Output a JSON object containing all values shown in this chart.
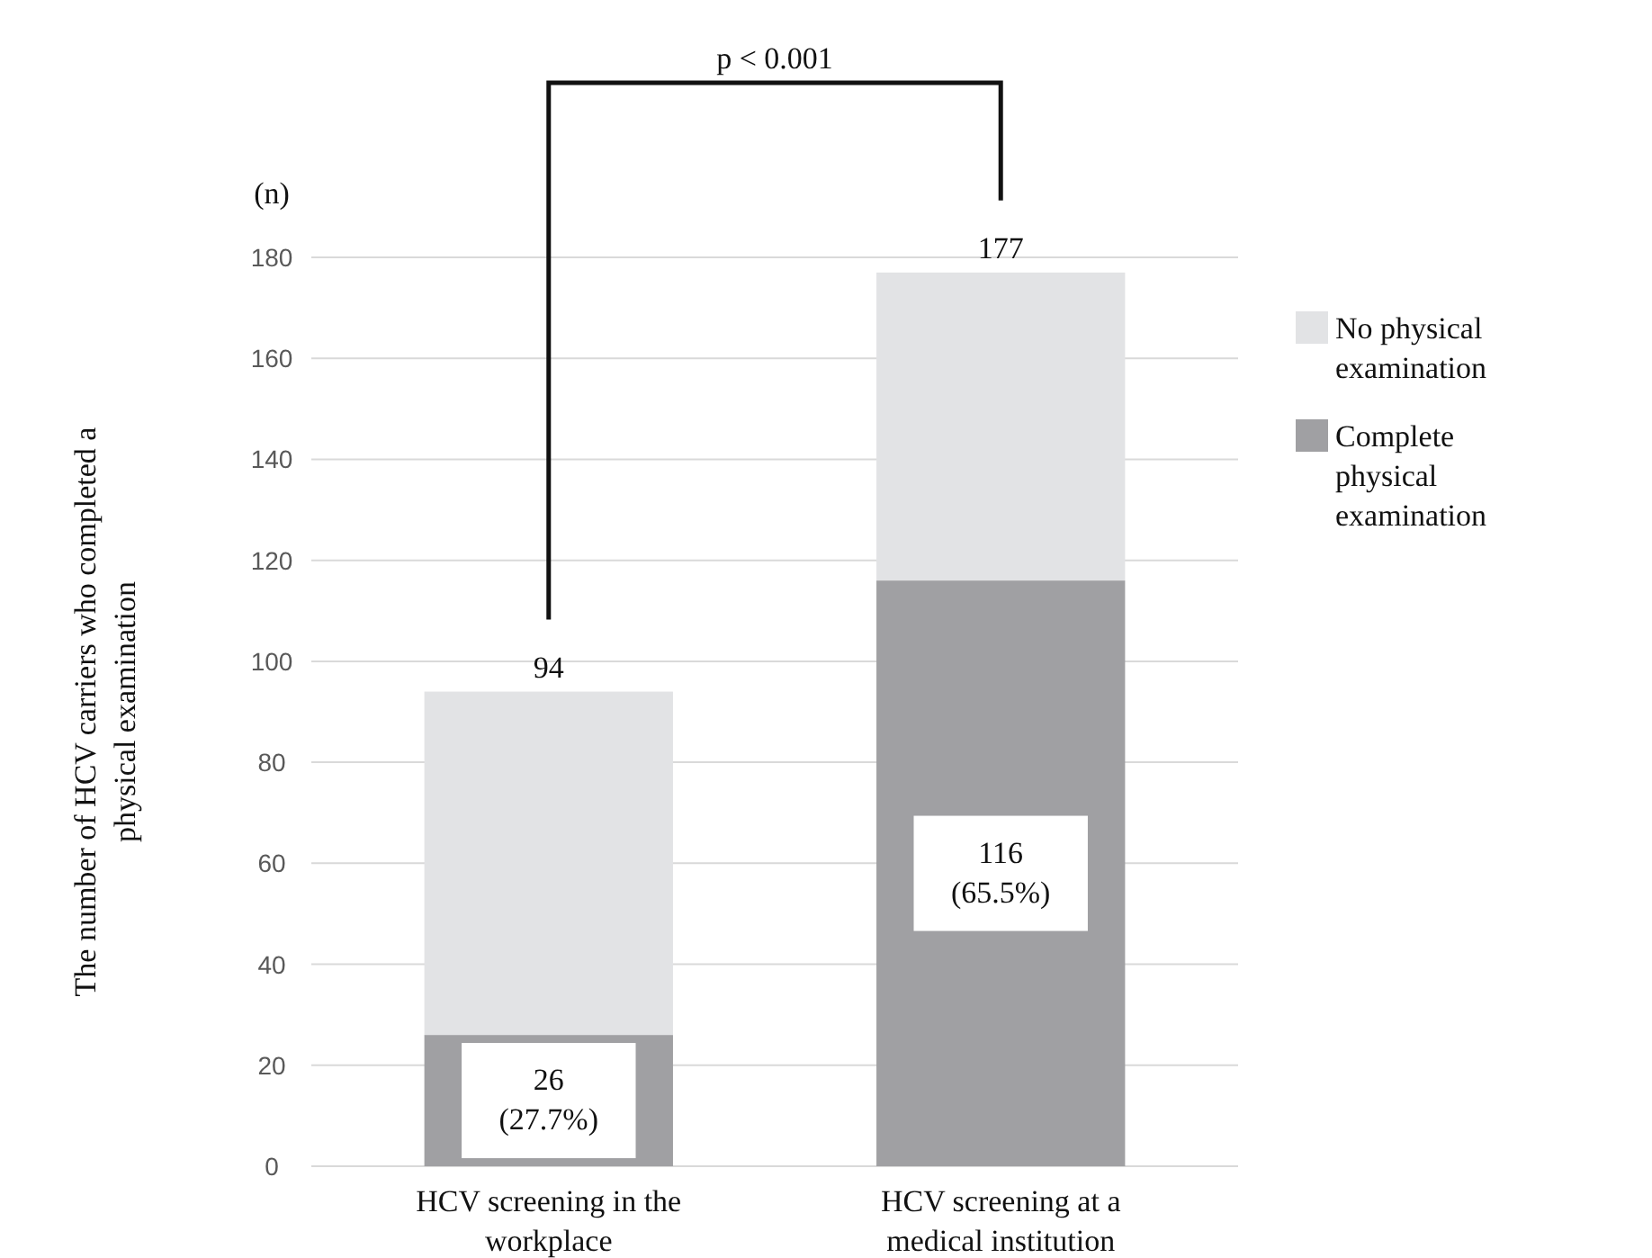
{
  "chart_data": {
    "type": "bar",
    "stacked": true,
    "ylabel": "The number of HCV carriers who completed a physical examination",
    "categories": [
      "HCV screening in the workplace",
      "HCV screening at a medical institution"
    ],
    "series": [
      {
        "name": "Complete physical examination",
        "color": "#a0a0a3",
        "values": [
          26,
          116
        ],
        "value_labels": [
          "26\n(27.7%)",
          "116\n(65.5%)"
        ]
      },
      {
        "name": "No physical examination",
        "color": "#e2e3e5",
        "values": [
          68,
          61
        ]
      }
    ],
    "totals": [
      "94",
      "177"
    ],
    "ylim": [
      0,
      180
    ],
    "yticks": [
      0,
      20,
      40,
      60,
      80,
      100,
      120,
      140,
      160,
      180
    ],
    "grid": "y",
    "legend": "right",
    "annotations": [
      "(n)",
      "p < 0.001"
    ]
  }
}
